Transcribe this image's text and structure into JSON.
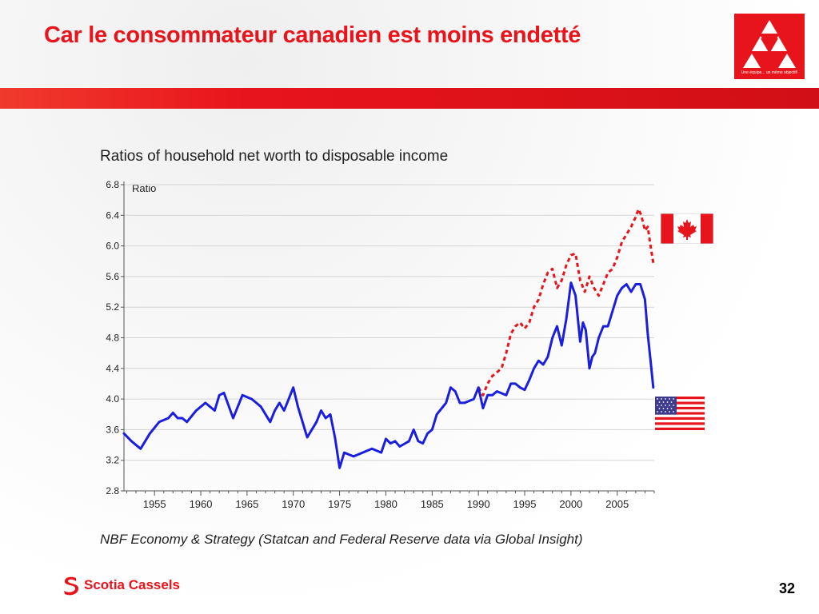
{
  "slide": {
    "title": "Car le consommateur canadien est moins endetté",
    "page_number": "32",
    "footer_brand": "Scotia Cassels",
    "logo_tagline": "Une équipe... un même objectif!",
    "colors": {
      "accent_red": "#e8141b",
      "canada_line": "#e8141b",
      "us_line": "#1a1ee0"
    }
  },
  "chart_data": {
    "type": "line",
    "title": "Ratios of household net worth to disposable income",
    "ylabel": "Ratio",
    "source": "NBF Economy & Strategy (Statcan and Federal Reserve data via Global Insight)",
    "ylim": [
      2.8,
      6.8
    ],
    "xlim": [
      1951.7,
      2009
    ],
    "yticks": [
      2.8,
      3.2,
      3.6,
      4.0,
      4.4,
      4.8,
      5.2,
      5.6,
      6.0,
      6.4,
      6.8
    ],
    "ytick_labels": [
      "2.8",
      "3.2",
      "3.6",
      "4.0",
      "4.4",
      "4.8",
      "5.2",
      "5.6",
      "6.0",
      "6.4",
      "6.8"
    ],
    "xticks": [
      1955,
      1960,
      1965,
      1970,
      1975,
      1980,
      1985,
      1990,
      1995,
      2000,
      2005
    ],
    "xtick_labels": [
      "1955",
      "1960",
      "1965",
      "1970",
      "1975",
      "1980",
      "1985",
      "1990",
      "1995",
      "2000",
      "2005"
    ],
    "grid": "horizontal",
    "legend": "flags at right (Canada, United States)",
    "series": [
      {
        "name": "Canada",
        "style": "dashed",
        "color": "#e8141b",
        "x": [
          1990.0,
          1990.5,
          1991.0,
          1991.5,
          1992.0,
          1992.5,
          1993.0,
          1993.5,
          1994.0,
          1994.5,
          1995.0,
          1995.5,
          1996.0,
          1996.5,
          1997.0,
          1997.5,
          1998.0,
          1998.5,
          1999.0,
          1999.5,
          2000.0,
          2000.5,
          2001.0,
          2001.5,
          2002.0,
          2002.5,
          2003.0,
          2003.5,
          2004.0,
          2004.5,
          2005.0,
          2005.5,
          2006.0,
          2006.5,
          2007.0,
          2007.3,
          2007.6,
          2008.0,
          2008.3,
          2008.6,
          2008.9
        ],
        "y": [
          4.15,
          4.05,
          4.2,
          4.3,
          4.35,
          4.4,
          4.6,
          4.85,
          4.95,
          5.0,
          4.92,
          5.0,
          5.2,
          5.3,
          5.5,
          5.65,
          5.7,
          5.45,
          5.55,
          5.75,
          5.88,
          5.9,
          5.55,
          5.4,
          5.6,
          5.45,
          5.35,
          5.5,
          5.65,
          5.7,
          5.85,
          6.05,
          6.15,
          6.25,
          6.38,
          6.48,
          6.4,
          6.2,
          6.25,
          6.0,
          5.78
        ]
      },
      {
        "name": "United States",
        "style": "solid",
        "color": "#1a1ee0",
        "x": [
          1951.7,
          1952.5,
          1953.5,
          1954.5,
          1955.5,
          1956.5,
          1957.0,
          1957.5,
          1958.0,
          1958.5,
          1959.5,
          1960.5,
          1961.0,
          1961.5,
          1962.0,
          1962.5,
          1963.5,
          1964.5,
          1965.5,
          1966.0,
          1966.5,
          1967.5,
          1968.0,
          1968.5,
          1969.0,
          1969.5,
          1970.0,
          1970.5,
          1971.5,
          1972.5,
          1973.0,
          1973.5,
          1974.0,
          1974.5,
          1975.0,
          1975.5,
          1976.5,
          1977.5,
          1978.5,
          1979.5,
          1980.0,
          1980.5,
          1981.0,
          1981.5,
          1982.5,
          1983.0,
          1983.5,
          1984.0,
          1984.5,
          1985.0,
          1985.5,
          1986.5,
          1987.0,
          1987.5,
          1988.0,
          1988.5,
          1989.5,
          1990.0,
          1990.5,
          1991.0,
          1991.5,
          1992.0,
          1993.0,
          1993.5,
          1994.0,
          1994.5,
          1995.0,
          1995.5,
          1996.0,
          1996.5,
          1997.0,
          1997.5,
          1998.0,
          1998.5,
          1999.0,
          1999.5,
          2000.0,
          2000.5,
          2001.0,
          2001.3,
          2001.6,
          2002.0,
          2002.3,
          2002.6,
          2003.0,
          2003.5,
          2004.0,
          2004.5,
          2005.0,
          2005.5,
          2006.0,
          2006.5,
          2007.0,
          2007.5,
          2008.0,
          2008.3,
          2008.6,
          2008.9
        ],
        "y": [
          3.55,
          3.45,
          3.35,
          3.55,
          3.7,
          3.75,
          3.82,
          3.75,
          3.75,
          3.7,
          3.85,
          3.95,
          3.9,
          3.85,
          4.05,
          4.08,
          3.75,
          4.05,
          4.0,
          3.95,
          3.9,
          3.7,
          3.85,
          3.95,
          3.85,
          4.0,
          4.15,
          3.9,
          3.5,
          3.7,
          3.85,
          3.75,
          3.8,
          3.5,
          3.1,
          3.3,
          3.25,
          3.3,
          3.35,
          3.3,
          3.48,
          3.42,
          3.45,
          3.38,
          3.45,
          3.6,
          3.45,
          3.42,
          3.55,
          3.6,
          3.8,
          3.95,
          4.15,
          4.1,
          3.95,
          3.95,
          4.0,
          4.15,
          3.88,
          4.05,
          4.05,
          4.1,
          4.05,
          4.2,
          4.2,
          4.15,
          4.12,
          4.25,
          4.4,
          4.5,
          4.45,
          4.55,
          4.8,
          4.95,
          4.7,
          5.05,
          5.52,
          5.35,
          4.75,
          5.0,
          4.9,
          4.4,
          4.55,
          4.6,
          4.8,
          4.95,
          4.95,
          5.15,
          5.35,
          5.45,
          5.5,
          5.4,
          5.5,
          5.5,
          5.3,
          4.85,
          4.5,
          4.15
        ]
      }
    ]
  }
}
